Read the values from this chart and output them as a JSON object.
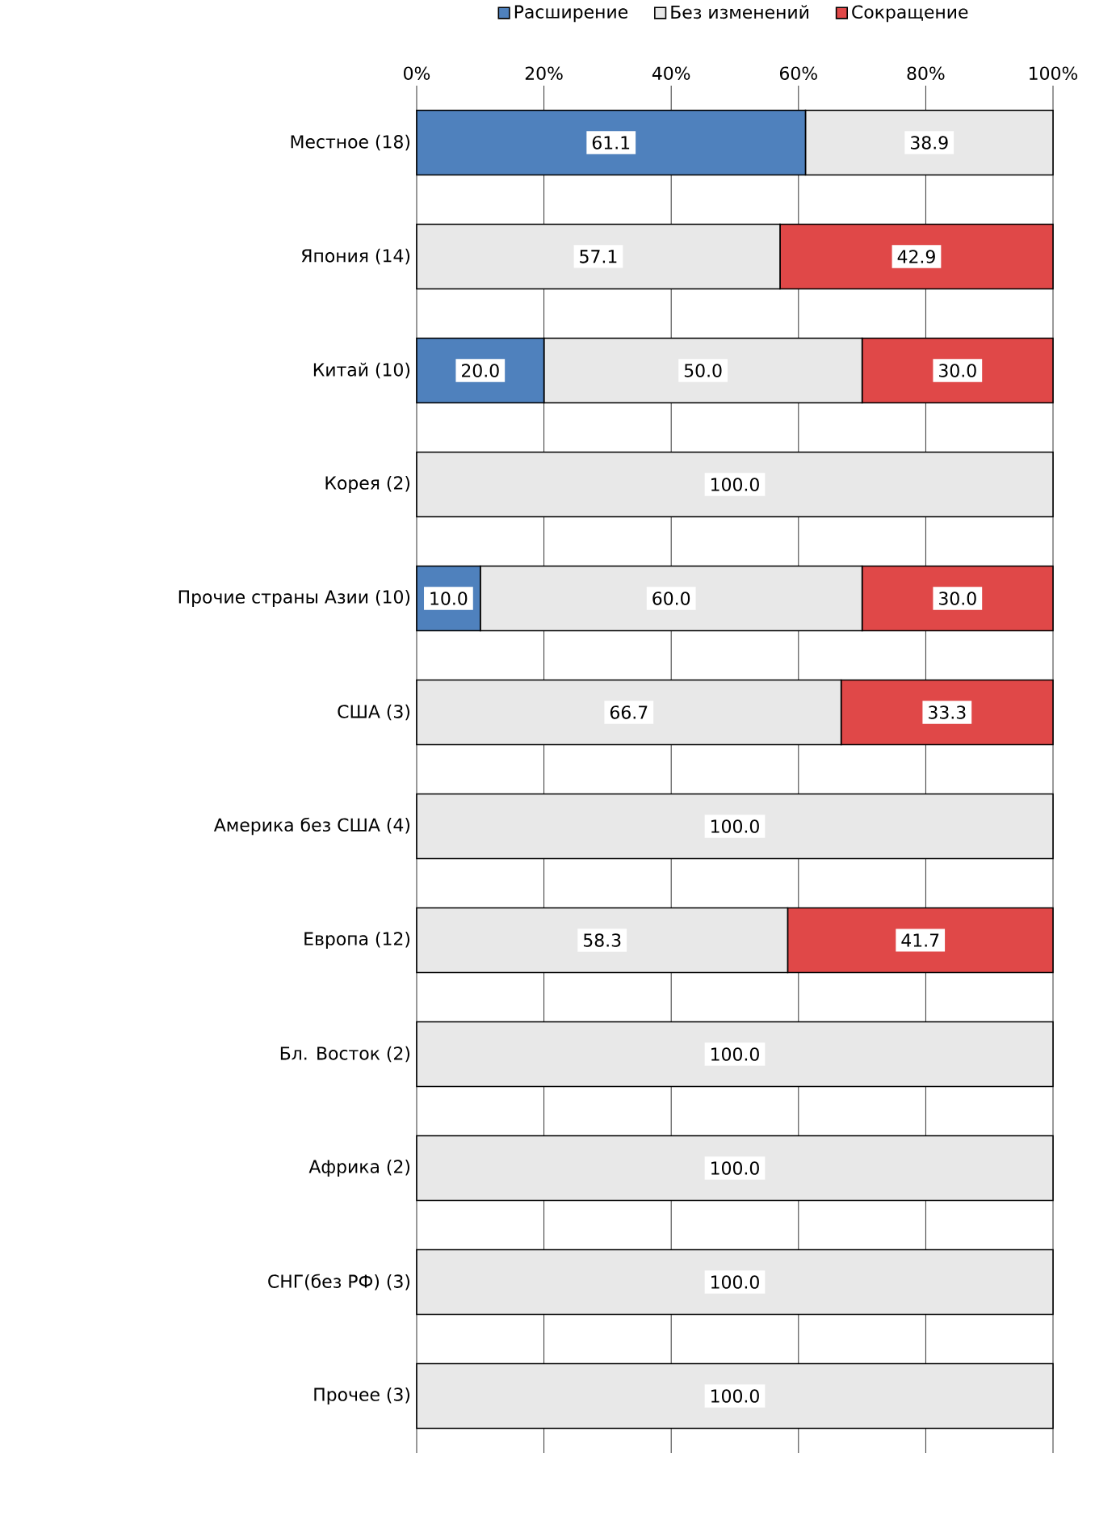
{
  "chart_data": {
    "type": "bar",
    "orientation": "horizontal",
    "stacked": true,
    "categories": [
      "Местное (18)",
      "Япония (14)",
      "Китай (10)",
      "Корея (2)",
      "Прочие страны Азии (10)",
      "США (3)",
      "Америка без США (4)",
      "Европа (12)",
      "Бл. Восток (2)",
      "Африка (2)",
      "СНГ(без РФ) (3)",
      "Прочее (3)"
    ],
    "series": [
      {
        "name": "Расширение",
        "color": "#4f81bd",
        "values": [
          61.1,
          0,
          20.0,
          0,
          10.0,
          0,
          0,
          0,
          0,
          0,
          0,
          0
        ],
        "value_labels": [
          "61.1",
          null,
          "20.0",
          null,
          "10.0",
          null,
          null,
          null,
          null,
          null,
          null,
          null
        ]
      },
      {
        "name": "Без изменений",
        "color": "#e8e8e8",
        "values": [
          38.9,
          57.1,
          50.0,
          100.0,
          60.0,
          66.7,
          100.0,
          58.3,
          100.0,
          100.0,
          100.0,
          100.0
        ],
        "value_labels": [
          "38.9",
          "57.1",
          "50.0",
          "100.0",
          "60.0",
          "66.7",
          "100.0",
          "58.3",
          "100.0",
          "100.0",
          "100.0",
          "100.0"
        ]
      },
      {
        "name": "Сокращение",
        "color": "#e04848",
        "values": [
          0,
          42.9,
          30.0,
          0,
          30.0,
          33.3,
          0,
          41.7,
          0,
          0,
          0,
          0
        ],
        "value_labels": [
          null,
          "42.9",
          "30.0",
          null,
          "30.0",
          "33.3",
          null,
          "41.7",
          null,
          null,
          null,
          null
        ]
      }
    ],
    "xlim": [
      0,
      100
    ],
    "xticks": [
      {
        "value": 0,
        "label": "0%"
      },
      {
        "value": 20,
        "label": "20%"
      },
      {
        "value": 40,
        "label": "40%"
      },
      {
        "value": 60,
        "label": "60%"
      },
      {
        "value": 80,
        "label": "80%"
      },
      {
        "value": 100,
        "label": "100%"
      }
    ],
    "grid": "x",
    "legend": "top"
  }
}
